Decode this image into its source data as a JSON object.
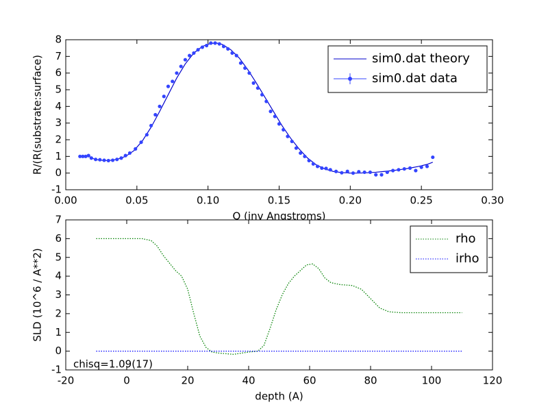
{
  "chart_data": [
    {
      "type": "line",
      "xlabel": "Q (inv Angstroms)",
      "ylabel": "R/(R(substrate:surface)",
      "xlim": [
        0,
        0.3
      ],
      "ylim": [
        -1,
        8
      ],
      "xticks": [
        {
          "value": 0,
          "label": "0.00"
        },
        0.05,
        {
          "value": 0.1,
          "label": "0.10"
        },
        0.15,
        {
          "value": 0.2,
          "label": "0.20"
        },
        0.25,
        {
          "value": 0.3,
          "label": "0.30"
        }
      ],
      "yticks": [
        -1,
        0,
        1,
        2,
        3,
        4,
        5,
        6,
        7,
        8
      ],
      "legend": "upper right",
      "series": [
        {
          "name": "sim0.dat theory",
          "color": "#0000cc",
          "style": "solid",
          "x": [
            0.01,
            0.014,
            0.016,
            0.018,
            0.022,
            0.026,
            0.03,
            0.036,
            0.042,
            0.048,
            0.054,
            0.06,
            0.066,
            0.072,
            0.078,
            0.084,
            0.09,
            0.096,
            0.102,
            0.106,
            0.11,
            0.116,
            0.122,
            0.128,
            0.134,
            0.14,
            0.146,
            0.152,
            0.158,
            0.164,
            0.17,
            0.176,
            0.182,
            0.188,
            0.194,
            0.2,
            0.206,
            0.212,
            0.218,
            0.224,
            0.23,
            0.236,
            0.242,
            0.248,
            0.254,
            0.258
          ],
          "values": [
            1.0,
            1.0,
            1.05,
            0.9,
            0.8,
            0.76,
            0.75,
            0.82,
            1.0,
            1.35,
            1.95,
            2.75,
            3.7,
            4.7,
            5.7,
            6.55,
            7.2,
            7.6,
            7.78,
            7.8,
            7.72,
            7.4,
            6.9,
            6.2,
            5.4,
            4.55,
            3.7,
            2.85,
            2.1,
            1.45,
            0.9,
            0.5,
            0.25,
            0.1,
            0.03,
            0.0,
            0.0,
            0.02,
            0.05,
            0.1,
            0.15,
            0.22,
            0.3,
            0.4,
            0.52,
            0.65
          ]
        },
        {
          "name": "sim0.dat data",
          "color": "#3344ff",
          "style": "markers",
          "x": [
            0.01,
            0.012,
            0.014,
            0.016,
            0.018,
            0.021,
            0.024,
            0.027,
            0.03,
            0.033,
            0.036,
            0.039,
            0.042,
            0.045,
            0.049,
            0.053,
            0.057,
            0.06,
            0.063,
            0.066,
            0.069,
            0.072,
            0.075,
            0.078,
            0.081,
            0.084,
            0.087,
            0.09,
            0.093,
            0.096,
            0.099,
            0.102,
            0.105,
            0.108,
            0.111,
            0.114,
            0.117,
            0.12,
            0.123,
            0.126,
            0.129,
            0.132,
            0.135,
            0.138,
            0.141,
            0.144,
            0.147,
            0.15,
            0.153,
            0.156,
            0.159,
            0.162,
            0.165,
            0.168,
            0.171,
            0.174,
            0.177,
            0.18,
            0.183,
            0.186,
            0.19,
            0.194,
            0.198,
            0.202,
            0.206,
            0.21,
            0.214,
            0.218,
            0.222,
            0.226,
            0.23,
            0.234,
            0.238,
            0.242,
            0.246,
            0.25,
            0.254,
            0.258
          ],
          "values": [
            1.0,
            1.0,
            1.0,
            1.05,
            0.9,
            0.82,
            0.8,
            0.77,
            0.75,
            0.77,
            0.82,
            0.9,
            1.05,
            1.2,
            1.45,
            1.85,
            2.3,
            2.85,
            3.5,
            4.0,
            4.6,
            5.2,
            5.5,
            6.0,
            6.4,
            6.8,
            7.05,
            7.2,
            7.4,
            7.55,
            7.65,
            7.8,
            7.8,
            7.75,
            7.6,
            7.45,
            7.2,
            7.05,
            6.6,
            6.3,
            6.0,
            5.4,
            5.1,
            4.7,
            4.3,
            3.7,
            3.4,
            2.95,
            2.6,
            2.2,
            1.9,
            1.5,
            1.2,
            1.0,
            0.75,
            0.55,
            0.4,
            0.3,
            0.28,
            0.2,
            0.1,
            0.02,
            0.1,
            0.0,
            0.08,
            0.05,
            0.05,
            -0.1,
            -0.1,
            0.05,
            0.15,
            0.2,
            0.25,
            0.3,
            0.15,
            0.35,
            0.4,
            0.95
          ]
        }
      ]
    },
    {
      "type": "line",
      "xlabel": "depth (A)",
      "ylabel": "SLD (10^6 / A**2)",
      "xlim": [
        -20,
        120
      ],
      "ylim": [
        -1,
        7
      ],
      "xticks": [
        -20,
        0,
        20,
        40,
        60,
        80,
        100,
        120
      ],
      "yticks": [
        -1,
        0,
        1,
        2,
        3,
        4,
        5,
        6,
        7
      ],
      "legend": "upper right",
      "annotation": "chisq=1.09(17)",
      "series": [
        {
          "name": "rho",
          "color": "#008000",
          "style": "dotted",
          "x": [
            -10,
            5,
            8,
            10,
            12,
            14,
            16,
            18,
            20,
            22,
            24,
            26,
            28,
            30,
            35,
            40,
            43,
            45,
            47,
            49,
            51,
            53,
            55,
            57,
            59,
            61,
            63,
            65,
            67,
            70,
            74,
            77,
            80,
            83,
            86,
            90,
            110
          ],
          "values": [
            6.0,
            6.0,
            5.9,
            5.6,
            5.1,
            4.7,
            4.3,
            4.0,
            3.3,
            2.0,
            0.8,
            0.2,
            -0.05,
            -0.1,
            -0.17,
            -0.05,
            0.0,
            0.3,
            1.2,
            2.2,
            3.0,
            3.6,
            4.0,
            4.3,
            4.6,
            4.65,
            4.4,
            3.9,
            3.65,
            3.55,
            3.5,
            3.3,
            2.8,
            2.3,
            2.1,
            2.05,
            2.05
          ]
        },
        {
          "name": "irho",
          "color": "#0000ff",
          "style": "dotted",
          "x": [
            -10,
            110
          ],
          "values": [
            0,
            0
          ]
        }
      ]
    }
  ]
}
